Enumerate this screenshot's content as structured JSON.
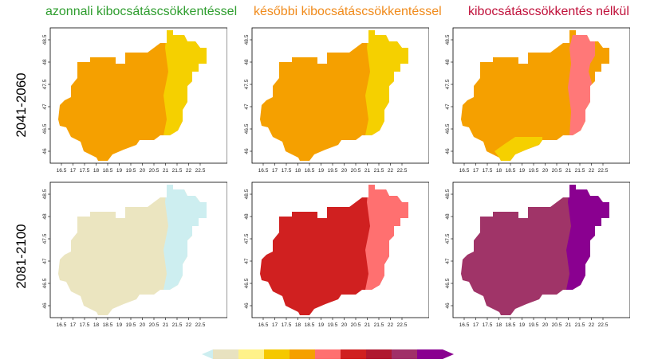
{
  "columns": [
    {
      "title": "azonnali kibocsátáscsökkentéssel",
      "color": "#2e9d2e"
    },
    {
      "title": "későbbi kibocsátáscsökkentéssel",
      "color": "#f08a1a"
    },
    {
      "title": "kibocsátáscsökkentés nélkül",
      "color": "#c0103a"
    }
  ],
  "rows": [
    {
      "label": "2041-2060"
    },
    {
      "label": "2081-2100"
    }
  ],
  "axes": {
    "x_ticks": [
      "16.5",
      "17",
      "17.5",
      "18",
      "18.5",
      "19",
      "19.5",
      "20",
      "20.5",
      "21",
      "21.5",
      "22",
      "22.5"
    ],
    "y_ticks": [
      "48.5",
      "48",
      "47.5",
      "47",
      "46.5",
      "46"
    ]
  },
  "legend": {
    "colors": [
      "#e8e2c0",
      "#fff28a",
      "#f5c800",
      "#f5a000",
      "#ff7070",
      "#d02020",
      "#b01830",
      "#a03068",
      "#8a0090"
    ],
    "low_end_color": "#cdeef0"
  },
  "map_colors": {
    "p1": {
      "base": "#f5a000",
      "east": "#f5d000"
    },
    "p2": {
      "base": "#f5a000",
      "east": "#f5d000"
    },
    "p3": {
      "base": "#f5a000",
      "east": "#ff7878",
      "south": "#f5d000"
    },
    "p4": {
      "base": "#ebe5c0",
      "east": "#cdeef0"
    },
    "p5": {
      "base": "#d02020",
      "east": "#ff7070"
    },
    "p6": {
      "base": "#a03468",
      "east": "#8a0090"
    }
  }
}
